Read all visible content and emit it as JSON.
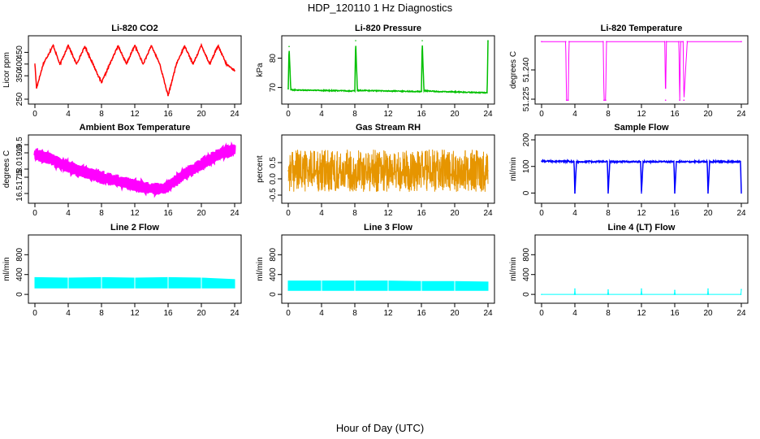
{
  "figure": {
    "title": "HDP_120110  1 Hz Diagnostics",
    "xlabel": "Hour of Day (UTC)"
  },
  "chart_data": [
    {
      "type": "line",
      "title": "Li-820 CO2",
      "ylabel": "Licor ppm",
      "color": "#ff0000",
      "xlim": [
        0,
        24
      ],
      "ylim": [
        250,
        500
      ],
      "xticks": [
        "0",
        "4",
        "8",
        "12",
        "16",
        "20",
        "24"
      ],
      "yticks": [
        "250",
        "350",
        "400",
        "450"
      ],
      "series": [
        {
          "x": [
            0,
            0.2,
            1,
            2.2,
            3,
            4,
            5,
            6,
            7,
            8,
            9,
            10,
            11,
            12,
            13,
            14,
            15,
            16,
            17,
            18,
            19,
            20,
            21,
            22,
            23,
            24
          ],
          "y": [
            400,
            298,
            400,
            480,
            398,
            480,
            400,
            475,
            398,
            320,
            400,
            478,
            400,
            480,
            400,
            478,
            400,
            265,
            400,
            478,
            400,
            480,
            400,
            478,
            400,
            372
          ]
        }
      ]
    },
    {
      "type": "line",
      "title": "Li-820 Pressure",
      "ylabel": "kPa",
      "color": "#00c000",
      "xlim": [
        0,
        24
      ],
      "ylim": [
        66,
        86
      ],
      "xticks": [
        "0",
        "4",
        "8",
        "12",
        "16",
        "20",
        "24"
      ],
      "yticks": [
        "70",
        "80"
      ],
      "series": [
        {
          "x": [
            0,
            0.1,
            0.3,
            2,
            4,
            6,
            8,
            8.1,
            8.3,
            10,
            12,
            14,
            16,
            16.1,
            16.3,
            18,
            20,
            22,
            23.9,
            24
          ],
          "y": [
            69.5,
            84,
            69.2,
            69.1,
            69,
            68.9,
            68.8,
            86,
            69,
            68.9,
            68.8,
            68.7,
            68.6,
            86,
            68.9,
            68.6,
            68.5,
            68.3,
            68.2,
            86
          ]
        }
      ]
    },
    {
      "type": "line",
      "title": "Li-820 Temperature",
      "ylabel": "degrees C",
      "color": "#ff00ff",
      "xlim": [
        0,
        24
      ],
      "ylim": [
        51.225,
        51.255
      ],
      "xticks": [
        "0",
        "4",
        "8",
        "12",
        "16",
        "20",
        "24"
      ],
      "yticks": [
        "51.225",
        "51.240"
      ],
      "series": [
        {
          "x": [
            0,
            2.9,
            3.0,
            3.2,
            3.3,
            7.4,
            7.5,
            7.7,
            7.8,
            14.8,
            14.9,
            15.0,
            16.5,
            16.6,
            16.7,
            17.0,
            17.1,
            17.5,
            24
          ],
          "y": [
            51.2545,
            51.2545,
            51.2245,
            51.2245,
            51.2545,
            51.2545,
            51.2245,
            51.2245,
            51.2545,
            51.2545,
            51.2245,
            51.2545,
            51.2545,
            51.2245,
            51.2545,
            51.2545,
            51.2245,
            51.2545,
            51.2545
          ]
        }
      ]
    },
    {
      "type": "line",
      "title": "Ambient Box Temperature",
      "ylabel": "degrees C",
      "color": "#ff00ff",
      "xlim": [
        0,
        24
      ],
      "ylim": [
        16.2,
        19.8
      ],
      "xticks": [
        "0",
        "4",
        "8",
        "12",
        "16",
        "20",
        "24"
      ],
      "yticks": [
        "16.5",
        "17.5",
        "18.0",
        "19.0",
        "19.5"
      ],
      "series": [
        {
          "x": [
            0,
            2,
            4,
            6,
            8,
            10,
            12,
            14,
            15.5,
            17,
            18,
            20,
            22,
            24
          ],
          "y": [
            18.9,
            18.6,
            18.1,
            17.8,
            17.5,
            17.3,
            17.0,
            16.8,
            16.8,
            17.3,
            17.7,
            18.3,
            18.9,
            19.2
          ]
        }
      ]
    },
    {
      "type": "scatter",
      "title": "Gas Stream RH",
      "ylabel": "percent",
      "color": "#e69500",
      "xlim": [
        0,
        24
      ],
      "ylim": [
        -0.6,
        1.2
      ],
      "xticks": [
        "0",
        "4",
        "8",
        "12",
        "16",
        "20",
        "24"
      ],
      "yticks": [
        "-0.5",
        "0.0",
        "0.5"
      ],
      "series": [
        {
          "x": [
            0,
            24
          ],
          "y": [
            0.25,
            0.25
          ]
        }
      ]
    },
    {
      "type": "line",
      "title": "Sample Flow",
      "ylabel": "ml/min",
      "color": "#0000ff",
      "xlim": [
        0,
        24
      ],
      "ylim": [
        -20,
        200
      ],
      "xticks": [
        "0",
        "4",
        "8",
        "12",
        "16",
        "20",
        "24"
      ],
      "yticks": [
        "0",
        "100",
        "200"
      ],
      "series": [
        {
          "x": [
            0,
            3.9,
            4.0,
            4.2,
            7.9,
            8.0,
            8.2,
            11.9,
            12.0,
            12.2,
            15.9,
            16.0,
            16.2,
            19.9,
            20.0,
            20.2,
            23.9,
            24.0
          ],
          "y": [
            120,
            118,
            0,
            118,
            118,
            0,
            118,
            118,
            0,
            118,
            118,
            0,
            118,
            118,
            0,
            118,
            118,
            0
          ]
        }
      ]
    },
    {
      "type": "area",
      "title": "Line 2 Flow",
      "ylabel": "ml/min",
      "color": "#00ffff",
      "xlim": [
        0,
        24
      ],
      "ylim": [
        -80,
        1100
      ],
      "xticks": [
        "0",
        "4",
        "8",
        "12",
        "16",
        "20",
        "24"
      ],
      "yticks": [
        "0",
        "400",
        "800"
      ],
      "series": [
        {
          "x": [
            0,
            4,
            8,
            12,
            16,
            20,
            24
          ],
          "low": [
            130,
            130,
            130,
            130,
            130,
            130,
            130
          ],
          "high": [
            340,
            330,
            340,
            330,
            340,
            330,
            300
          ]
        }
      ]
    },
    {
      "type": "area",
      "title": "Line 3 Flow",
      "ylabel": "ml/min",
      "color": "#00ffff",
      "xlim": [
        0,
        24
      ],
      "ylim": [
        -80,
        1100
      ],
      "xticks": [
        "0",
        "4",
        "8",
        "12",
        "16",
        "20",
        "24"
      ],
      "yticks": [
        "0",
        "400",
        "800"
      ],
      "series": [
        {
          "x": [
            0,
            4,
            8,
            12,
            16,
            20,
            24
          ],
          "low": [
            80,
            80,
            80,
            80,
            80,
            80,
            80
          ],
          "high": [
            270,
            270,
            270,
            270,
            260,
            260,
            250
          ]
        }
      ]
    },
    {
      "type": "line",
      "title": "Line 4 (LT) Flow",
      "ylabel": "ml/min",
      "color": "#00ffff",
      "xlim": [
        0,
        24
      ],
      "ylim": [
        -80,
        1100
      ],
      "xticks": [
        "0",
        "4",
        "8",
        "12",
        "16",
        "20",
        "24"
      ],
      "yticks": [
        "0",
        "400",
        "800"
      ],
      "series": [
        {
          "x": [
            0,
            3.95,
            4.0,
            4.05,
            7.95,
            8.0,
            8.05,
            11.95,
            12.0,
            12.05,
            15.95,
            16.0,
            16.05,
            19.95,
            20.0,
            20.05,
            23.95,
            24.0
          ],
          "y": [
            0,
            0,
            110,
            0,
            0,
            90,
            0,
            0,
            110,
            0,
            0,
            80,
            0,
            0,
            110,
            0,
            0,
            100
          ]
        }
      ]
    }
  ]
}
